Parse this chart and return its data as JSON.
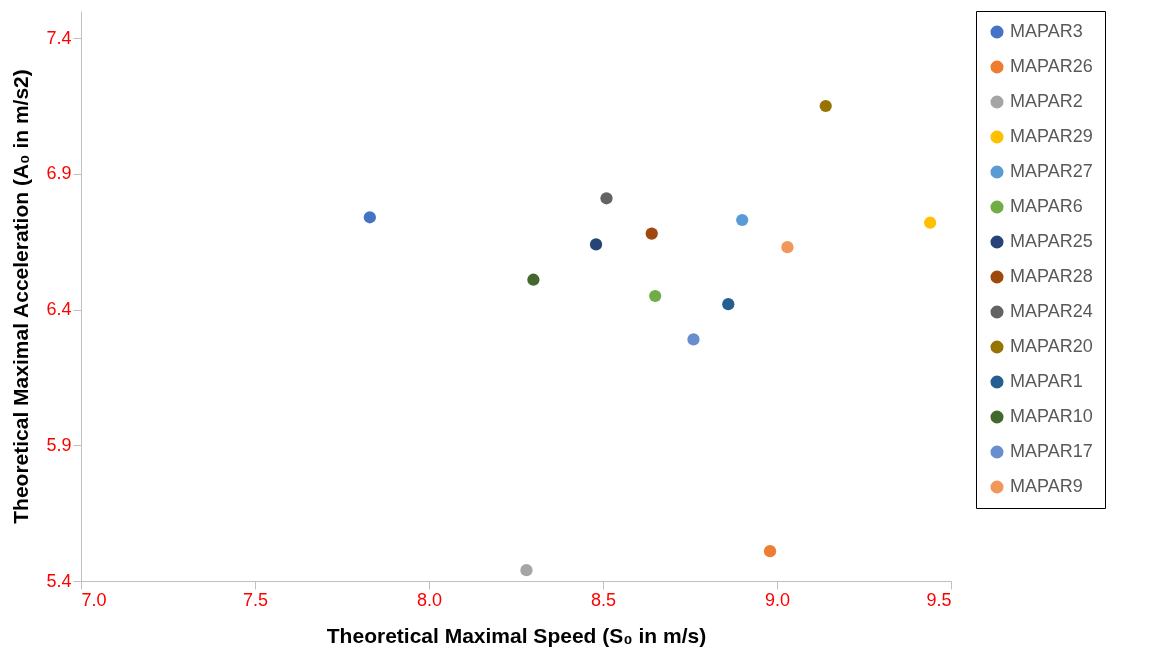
{
  "chart_data": {
    "type": "scatter",
    "xlabel": "Theoretical Maximal Speed (S₀ in m/s)",
    "ylabel": "Theoretical Maximal Acceleration (A₀ in m/s2)",
    "xlim": [
      7,
      9.5
    ],
    "xticks": [
      {
        "value": 7,
        "label": "7.0"
      },
      7.5,
      {
        "value": 8,
        "label": "8.0"
      },
      8.5,
      {
        "value": 9,
        "label": "9.0"
      },
      9.5
    ],
    "ylim": [
      5.4,
      7.5
    ],
    "yticks": [
      5.4,
      5.9,
      6.4,
      6.9,
      7.4
    ],
    "grid": false,
    "legend": "right",
    "marker": "circle",
    "series": [
      {
        "name": "MAPAR3",
        "color": "#4472c4",
        "x": [
          7.83
        ],
        "values": [
          6.74
        ]
      },
      {
        "name": "MAPAR26",
        "color": "#ed7d31",
        "x": [
          8.98
        ],
        "values": [
          5.51
        ]
      },
      {
        "name": "MAPAR2",
        "color": "#a5a5a5",
        "x": [
          8.28
        ],
        "values": [
          5.44
        ]
      },
      {
        "name": "MAPAR29",
        "color": "#ffc000",
        "x": [
          9.44
        ],
        "values": [
          6.72
        ]
      },
      {
        "name": "MAPAR27",
        "color": "#5b9bd5",
        "x": [
          8.9
        ],
        "values": [
          6.73
        ]
      },
      {
        "name": "MAPAR6",
        "color": "#70ad47",
        "x": [
          8.65
        ],
        "values": [
          6.45
        ]
      },
      {
        "name": "MAPAR25",
        "color": "#264478",
        "x": [
          8.48
        ],
        "values": [
          6.64
        ]
      },
      {
        "name": "MAPAR28",
        "color": "#9e480e",
        "x": [
          8.64
        ],
        "values": [
          6.68
        ]
      },
      {
        "name": "MAPAR24",
        "color": "#636363",
        "x": [
          8.51
        ],
        "values": [
          6.81
        ]
      },
      {
        "name": "MAPAR20",
        "color": "#997300",
        "x": [
          9.14
        ],
        "values": [
          7.15
        ]
      },
      {
        "name": "MAPAR1",
        "color": "#255e91",
        "x": [
          8.86
        ],
        "values": [
          6.42
        ]
      },
      {
        "name": "MAPAR10",
        "color": "#43682b",
        "x": [
          8.3
        ],
        "values": [
          6.51
        ]
      },
      {
        "name": "MAPAR17",
        "color": "#698ed0",
        "x": [
          8.76
        ],
        "values": [
          6.29
        ]
      },
      {
        "name": "MAPAR9",
        "color": "#f1975a",
        "x": [
          9.03
        ],
        "values": [
          6.63
        ]
      }
    ]
  }
}
